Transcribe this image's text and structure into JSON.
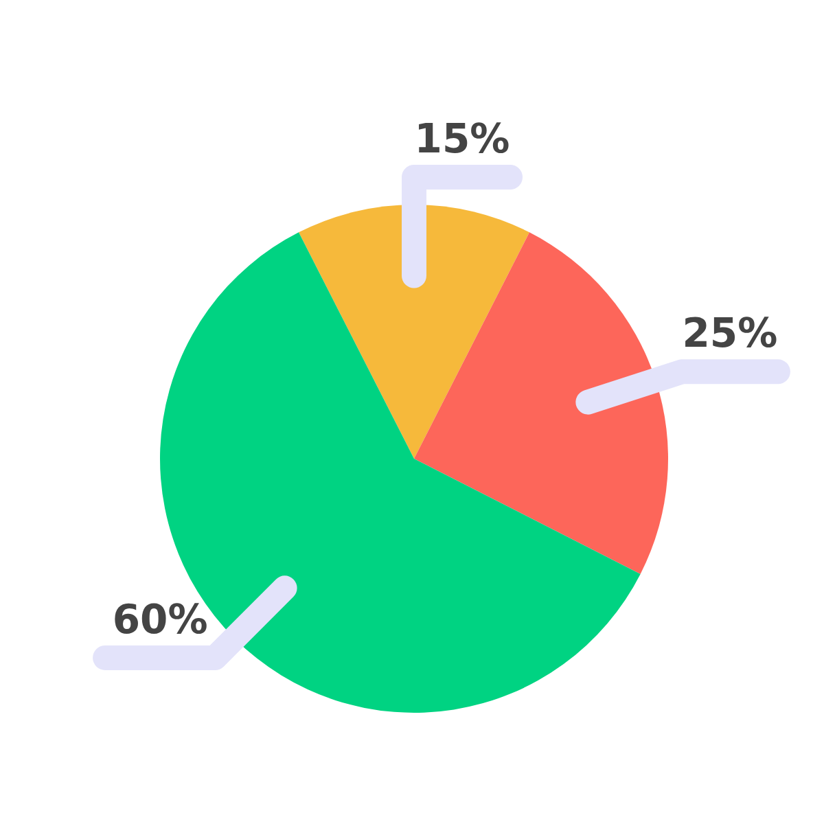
{
  "chart_data": {
    "type": "pie",
    "categories": [
      null,
      null,
      null
    ],
    "values": [
      15,
      25,
      60
    ],
    "colors": [
      "#f6b93b",
      "#fd665a",
      "#00d382"
    ],
    "value_labels": [
      "15%",
      "25%",
      "60%"
    ]
  }
}
